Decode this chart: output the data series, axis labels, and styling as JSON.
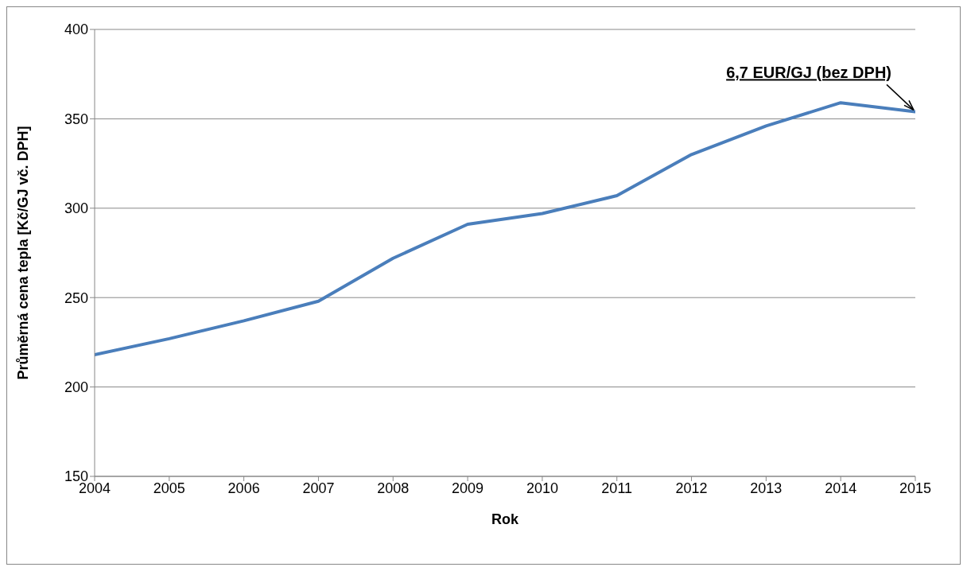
{
  "chart_data": {
    "type": "line",
    "xlabel": "Rok",
    "ylabel": "Průměrná cena tepla [Kč/GJ vč. DPH]",
    "x": [
      2004,
      2005,
      2006,
      2007,
      2008,
      2009,
      2010,
      2011,
      2012,
      2013,
      2014,
      2015
    ],
    "series": [
      {
        "color": "#4a7ebb",
        "values": [
          218,
          227,
          237,
          248,
          272,
          291,
          297,
          307,
          330,
          346,
          359,
          354
        ]
      }
    ],
    "xlim": [
      2004,
      2015
    ],
    "xticks": [
      2004,
      2005,
      2006,
      2007,
      2008,
      2009,
      2010,
      2011,
      2012,
      2013,
      2014,
      2015
    ],
    "ylim": [
      150,
      400
    ],
    "yticks": [
      150,
      200,
      250,
      300,
      350,
      400
    ],
    "grid": "y",
    "marker": "none",
    "line_style": "solid",
    "annotations": [
      {
        "text": "6,7 EUR/GJ (bez DPH)",
        "x": 2015,
        "y": 354
      }
    ]
  }
}
